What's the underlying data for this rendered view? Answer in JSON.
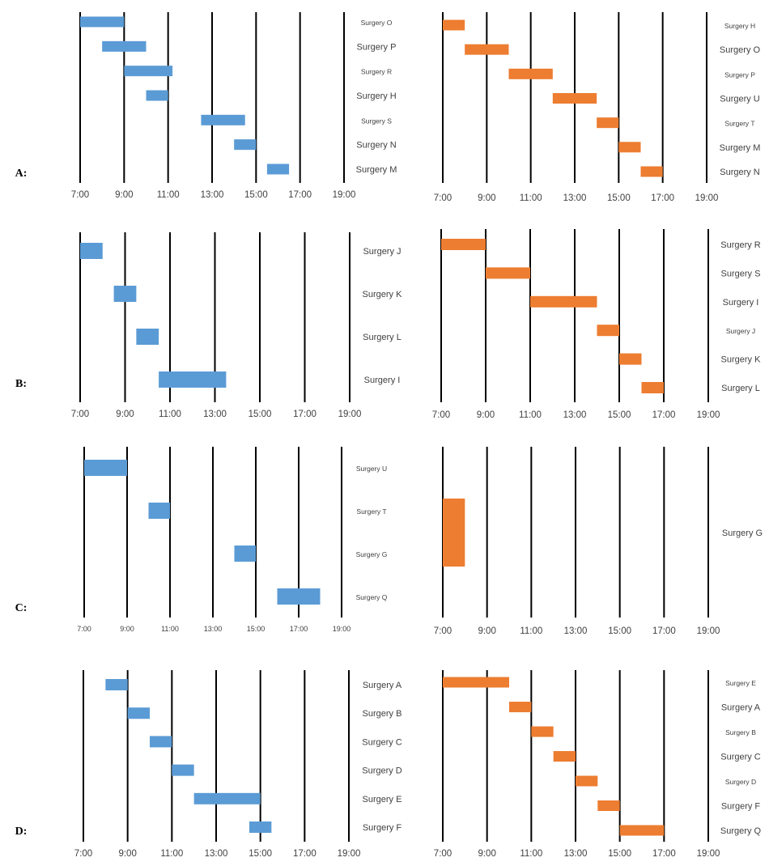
{
  "colors": {
    "left": "#5b9bd5",
    "right": "#ed7d31",
    "grid": "#000000",
    "text": "#404040"
  },
  "chart_data": [
    {
      "panel": "A",
      "side": "left",
      "type": "gantt",
      "label": "A:",
      "ticks": [
        "7:00",
        "9:00",
        "11:00",
        "13:00",
        "15:00",
        "17:00",
        "19:00"
      ],
      "xlim": [
        7,
        19
      ],
      "tasks": [
        {
          "name": "Surgery O",
          "start": 7.0,
          "end": 9.0,
          "small": true
        },
        {
          "name": "Surgery P",
          "start": 8.0,
          "end": 10.0,
          "small": false
        },
        {
          "name": "Surgery R",
          "start": 9.0,
          "end": 11.2,
          "small": true
        },
        {
          "name": "Surgery H",
          "start": 10.0,
          "end": 11.0,
          "small": false
        },
        {
          "name": "Surgery S",
          "start": 12.5,
          "end": 14.5,
          "small": true
        },
        {
          "name": "Surgery N",
          "start": 14.0,
          "end": 15.0,
          "small": false
        },
        {
          "name": "Surgery M",
          "start": 15.5,
          "end": 16.5,
          "small": false
        }
      ]
    },
    {
      "panel": "A",
      "side": "right",
      "type": "gantt",
      "ticks": [
        "7:00",
        "9:00",
        "11:00",
        "13:00",
        "15:00",
        "17:00",
        "19:00"
      ],
      "xlim": [
        7,
        19
      ],
      "tasks": [
        {
          "name": "Surgery H",
          "start": 7.0,
          "end": 8.0,
          "small": true
        },
        {
          "name": "Surgery O",
          "start": 8.0,
          "end": 10.0,
          "small": false
        },
        {
          "name": "Surgery P",
          "start": 10.0,
          "end": 12.0,
          "small": true
        },
        {
          "name": "Surgery U",
          "start": 12.0,
          "end": 14.0,
          "small": false
        },
        {
          "name": "Surgery T",
          "start": 14.0,
          "end": 15.0,
          "small": true
        },
        {
          "name": "Surgery M",
          "start": 15.0,
          "end": 16.0,
          "small": false
        },
        {
          "name": "Surgery N",
          "start": 16.0,
          "end": 17.0,
          "small": false
        }
      ]
    },
    {
      "panel": "B",
      "side": "left",
      "type": "gantt",
      "label": "B:",
      "ticks": [
        "7:00",
        "9:00",
        "11:00",
        "13:00",
        "15:00",
        "17:00",
        "19:00"
      ],
      "xlim": [
        7,
        19
      ],
      "tasks": [
        {
          "name": "Surgery J",
          "start": 7.0,
          "end": 8.0,
          "small": false
        },
        {
          "name": "Surgery K",
          "start": 8.5,
          "end": 9.5,
          "small": false
        },
        {
          "name": "Surgery L",
          "start": 9.5,
          "end": 10.5,
          "small": false
        },
        {
          "name": "Surgery I",
          "start": 10.5,
          "end": 13.5,
          "small": false
        }
      ]
    },
    {
      "panel": "B",
      "side": "right",
      "type": "gantt",
      "ticks": [
        "7:00",
        "9:00",
        "11:00",
        "13:00",
        "15:00",
        "17:00",
        "19:00"
      ],
      "xlim": [
        7,
        19
      ],
      "tasks": [
        {
          "name": "Surgery R",
          "start": 7.0,
          "end": 9.0,
          "small": false
        },
        {
          "name": "Surgery S",
          "start": 9.0,
          "end": 11.0,
          "small": false
        },
        {
          "name": "Surgery I",
          "start": 11.0,
          "end": 14.0,
          "small": false
        },
        {
          "name": "Surgery J",
          "start": 14.0,
          "end": 15.0,
          "small": true
        },
        {
          "name": "Surgery K",
          "start": 15.0,
          "end": 16.0,
          "small": false
        },
        {
          "name": "Surgery L",
          "start": 16.0,
          "end": 17.0,
          "small": false
        }
      ]
    },
    {
      "panel": "C",
      "side": "left",
      "type": "gantt",
      "label": "C:",
      "ticks": [
        "7:00",
        "9:00",
        "11:00",
        "13:00",
        "15:00",
        "17:00",
        "19:00"
      ],
      "xlim": [
        7,
        19
      ],
      "tasks": [
        {
          "name": "Surgery U",
          "start": 7.0,
          "end": 9.0,
          "small": true
        },
        {
          "name": "Surgery T",
          "start": 10.0,
          "end": 11.0,
          "small": true
        },
        {
          "name": "Surgery G",
          "start": 14.0,
          "end": 15.0,
          "small": true
        },
        {
          "name": "Surgery Q",
          "start": 16.0,
          "end": 18.0,
          "small": true
        }
      ]
    },
    {
      "panel": "C",
      "side": "right",
      "type": "gantt",
      "ticks": [
        "7:00",
        "9:00",
        "11:00",
        "13:00",
        "15:00",
        "17:00",
        "19:00"
      ],
      "xlim": [
        7,
        19
      ],
      "tasks": [
        {
          "name": "Surgery G",
          "start": 7.0,
          "end": 8.0,
          "small": false
        }
      ]
    },
    {
      "panel": "D",
      "side": "left",
      "type": "gantt",
      "label": "D:",
      "ticks": [
        "7:00",
        "9:00",
        "11:00",
        "13:00",
        "15:00",
        "17:00",
        "19:00"
      ],
      "xlim": [
        7,
        19
      ],
      "tasks": [
        {
          "name": "Surgery A",
          "start": 8.0,
          "end": 9.0,
          "small": false
        },
        {
          "name": "Surgery B",
          "start": 9.0,
          "end": 10.0,
          "small": false
        },
        {
          "name": "Surgery C",
          "start": 10.0,
          "end": 11.0,
          "small": false
        },
        {
          "name": "Surgery D",
          "start": 11.0,
          "end": 12.0,
          "small": false
        },
        {
          "name": "Surgery E",
          "start": 12.0,
          "end": 15.0,
          "small": false
        },
        {
          "name": "Surgery F",
          "start": 14.5,
          "end": 15.5,
          "small": false
        }
      ]
    },
    {
      "panel": "D",
      "side": "right",
      "type": "gantt",
      "ticks": [
        "7:00",
        "9:00",
        "11:00",
        "13:00",
        "15:00",
        "17:00",
        "19:00"
      ],
      "xlim": [
        7,
        19
      ],
      "tasks": [
        {
          "name": "Surgery E",
          "start": 7.0,
          "end": 10.0,
          "small": true
        },
        {
          "name": "Surgery A",
          "start": 10.0,
          "end": 11.0,
          "small": false
        },
        {
          "name": "Surgery B",
          "start": 11.0,
          "end": 12.0,
          "small": true
        },
        {
          "name": "Surgery C",
          "start": 12.0,
          "end": 13.0,
          "small": false
        },
        {
          "name": "Surgery D",
          "start": 13.0,
          "end": 14.0,
          "small": true
        },
        {
          "name": "Surgery F",
          "start": 14.0,
          "end": 15.0,
          "small": false
        },
        {
          "name": "Surgery Q",
          "start": 15.0,
          "end": 17.0,
          "small": false
        }
      ]
    }
  ]
}
